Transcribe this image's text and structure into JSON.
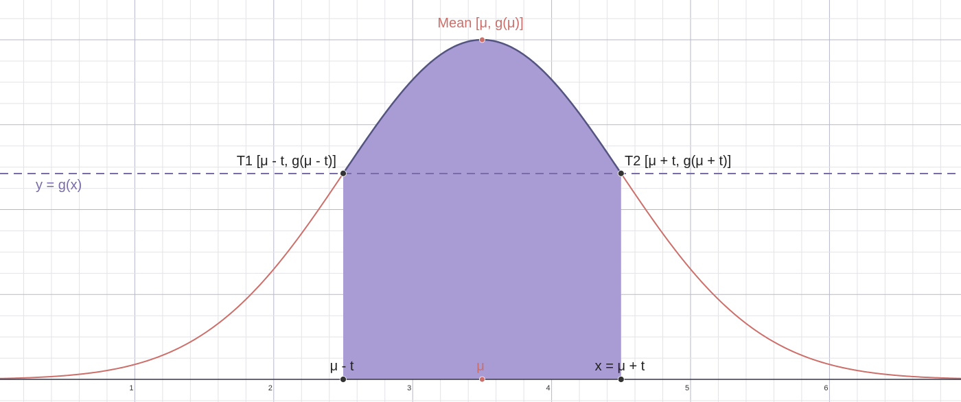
{
  "colors": {
    "curve": "#cc6f6a",
    "fill": "#a99bd4",
    "fill_outline": "#545480",
    "threshold": "#7a6ca8",
    "grid_minor": "#e3e3e8",
    "grid_major": "#b7b7cc",
    "axis": "#333344",
    "point_dark": "#333333",
    "point_mean": "#cc6f6a",
    "label_dark": "#222222",
    "label_mean": "#cc6f6a",
    "label_threshold": "#7a6ca8"
  },
  "labels": {
    "mean": "Mean [μ, g(μ)]",
    "t1": "T1 [μ - t, g(μ - t)]",
    "t2": "T2 [μ + t, g(μ + t)]",
    "threshold": "y = g(x)",
    "mu_minus_t": "μ - t",
    "mu": "μ",
    "x_eq_mu_plus_t": "x = μ + t"
  },
  "chart_data": {
    "type": "area",
    "x_ticks": [
      "1",
      "2",
      "3",
      "4",
      "5",
      "6"
    ],
    "xlim": [
      0.04,
      6.94
    ],
    "mean": 3.5,
    "half_width_t": 1.0,
    "annotations": [
      "Mean [μ, g(μ)]",
      "T1 [μ - t, g(μ - t)]",
      "T2 [μ + t, g(μ + t)]",
      "y = g(x)",
      "μ - t",
      "μ",
      "x = μ + t"
    ]
  }
}
